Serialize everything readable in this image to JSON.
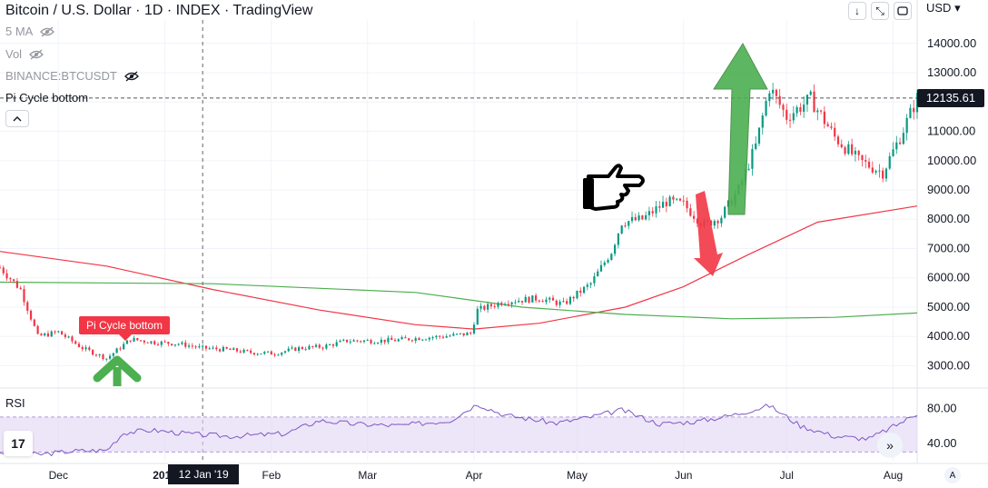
{
  "header": {
    "title": "Bitcoin / U.S. Dollar · 1D · INDEX · TradingView",
    "currency": "USD"
  },
  "legend": {
    "ma": "5 MA",
    "vol": "Vol",
    "compare": "BINANCE:BTCUSDT",
    "indicator": "Pi Cycle bottom"
  },
  "toolbar": {
    "down_icon": "↓",
    "expand_icon": "⤡"
  },
  "rsi_panel": {
    "label": "RSI",
    "ticks": [
      "80.00",
      "40.00"
    ],
    "band_upper": 70,
    "band_lower": 30
  },
  "signal_label": "Pi Cycle bottom",
  "crosshair": {
    "date_label": "12 Jan '19",
    "price_label": "12135.61"
  },
  "buttons": {
    "scroll_right": "»",
    "auto_scale": "A",
    "logo": "17"
  },
  "colors": {
    "up": "#089981",
    "down": "#f23645",
    "ma_long": "#f23645",
    "ma_short": "#4caf50",
    "rsi": "#7e57c2",
    "rsi_band": "#e1d5f5",
    "signal": "#f23645",
    "arrow_green": "#4caf50"
  },
  "chart_data": {
    "type": "candlestick",
    "y_ticks": [
      3000,
      4000,
      5000,
      6000,
      7000,
      8000,
      9000,
      10000,
      11000,
      12000,
      13000,
      14000
    ],
    "y_tick_labels": [
      "3000.00",
      "4000.00",
      "5000.00",
      "6000.00",
      "7000.00",
      "8000.00",
      "9000.00",
      "10000.00",
      "11000.00",
      "12000.00",
      "13000.00",
      "14000.00"
    ],
    "ylim": [
      2300,
      14800
    ],
    "x_tick_labels": [
      "Dec",
      "2019",
      "Feb",
      "Mar",
      "Apr",
      "May",
      "Jun",
      "Jul",
      "Aug"
    ],
    "x_tick_dates": [
      "2018-12-01",
      "2019-01-01",
      "2019-02-01",
      "2019-03-01",
      "2019-04-01",
      "2019-05-01",
      "2019-06-01",
      "2019-07-01",
      "2019-08-01"
    ],
    "x_range": [
      "2018-11-14",
      "2019-08-08"
    ],
    "last_price": 12135.61,
    "crosshair_date": "2019-01-12",
    "signal_date": "2018-12-16",
    "close_series": {
      "name": "BTCUSD close",
      "dates": [
        "2018-11-14",
        "2018-11-20",
        "2018-11-25",
        "2018-12-01",
        "2018-12-08",
        "2018-12-15",
        "2018-12-22",
        "2018-12-29",
        "2019-01-05",
        "2019-01-12",
        "2019-01-19",
        "2019-01-26",
        "2019-02-02",
        "2019-02-09",
        "2019-02-16",
        "2019-02-23",
        "2019-03-02",
        "2019-03-09",
        "2019-03-16",
        "2019-03-23",
        "2019-03-31",
        "2019-04-02",
        "2019-04-10",
        "2019-04-20",
        "2019-04-27",
        "2019-05-05",
        "2019-05-11",
        "2019-05-14",
        "2019-05-20",
        "2019-05-27",
        "2019-06-01",
        "2019-06-07",
        "2019-06-12",
        "2019-06-17",
        "2019-06-22",
        "2019-06-26",
        "2019-07-01",
        "2019-07-08",
        "2019-07-15",
        "2019-07-22",
        "2019-07-29",
        "2019-08-03",
        "2019-08-08"
      ],
      "values": [
        6350,
        5600,
        4000,
        4150,
        3600,
        3250,
        3900,
        3800,
        3750,
        3600,
        3550,
        3450,
        3420,
        3600,
        3650,
        3850,
        3850,
        3870,
        3950,
        4000,
        4100,
        4900,
        5200,
        5300,
        5100,
        5800,
        6900,
        7900,
        8000,
        8600,
        8500,
        7800,
        8100,
        9000,
        10500,
        12500,
        11500,
        12100,
        10800,
        10000,
        9600,
        10800,
        12135
      ]
    },
    "series": [
      {
        "name": "",
        "dates": [
          "2018-11-14",
          "2018-12-15",
          "2019-01-15",
          "2019-02-15",
          "2019-03-15",
          "2019-04-01",
          "2019-04-20",
          "2019-05-15",
          "2019-06-01",
          "2019-06-20",
          "2019-07-10",
          "2019-08-08"
        ],
        "values": [
          6900,
          6400,
          5600,
          4900,
          4400,
          4250,
          4450,
          5000,
          5700,
          6800,
          7900,
          8450
        ]
      },
      {
        "name": "",
        "dates": [
          "2018-11-14",
          "2019-01-15",
          "2019-03-15",
          "2019-04-15",
          "2019-05-15",
          "2019-06-15",
          "2019-07-15",
          "2019-08-08"
        ],
        "values": [
          5850,
          5800,
          5500,
          5000,
          4750,
          4600,
          4650,
          4800
        ]
      }
    ],
    "rsi": {
      "ylim": [
        20,
        100
      ],
      "dates": [
        "2018-11-14",
        "2018-11-25",
        "2018-12-05",
        "2018-12-15",
        "2018-12-20",
        "2018-12-28",
        "2019-01-10",
        "2019-01-20",
        "2019-02-05",
        "2019-02-15",
        "2019-02-25",
        "2019-03-10",
        "2019-03-25",
        "2019-04-02",
        "2019-04-10",
        "2019-04-25",
        "2019-05-05",
        "2019-05-14",
        "2019-05-25",
        "2019-06-05",
        "2019-06-15",
        "2019-06-26",
        "2019-07-05",
        "2019-07-15",
        "2019-07-25",
        "2019-08-03",
        "2019-08-08"
      ],
      "values": [
        30,
        27,
        31,
        32,
        52,
        55,
        50,
        48,
        51,
        66,
        62,
        60,
        66,
        85,
        72,
        63,
        70,
        78,
        62,
        65,
        72,
        83,
        60,
        48,
        45,
        63,
        74
      ]
    }
  }
}
